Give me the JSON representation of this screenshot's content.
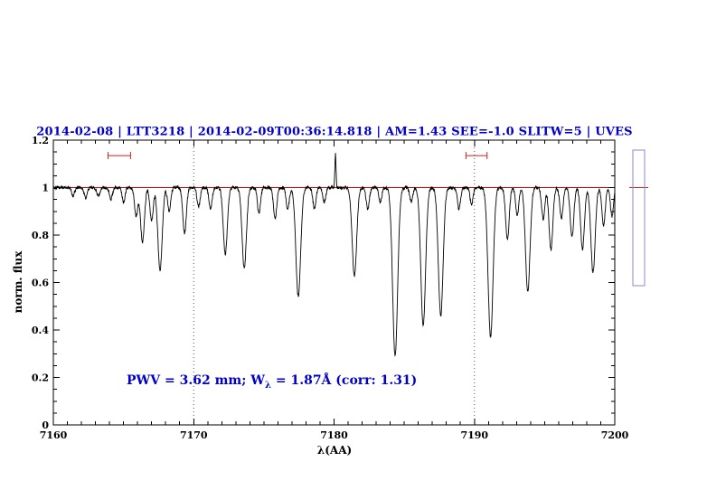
{
  "chart_data": {
    "type": "line",
    "title": "2014-02-08 | LTT3218 | 2014-02-09T00:36:14.818 | AM=1.43 SEE=-1.0 SLITW=5 | UVES",
    "title_color": "#0000cc",
    "xlabel": "λ(AA)",
    "ylabel": "norm. flux",
    "xlim": [
      7160,
      7200
    ],
    "ylim": [
      0,
      1.2
    ],
    "xticks": [
      7160,
      7170,
      7180,
      7190,
      7200
    ],
    "xtick_labels": [
      "7160",
      "7170",
      "7180",
      "7190",
      "7200"
    ],
    "yticks": [
      0,
      0.2,
      0.4,
      0.6,
      0.8,
      1,
      1.2
    ],
    "ytick_labels": [
      "0",
      "0.2",
      "0.4",
      "0.6",
      "0.8",
      "1",
      "1.2"
    ],
    "x_minor_step": 1,
    "y_minor_step": 0.05,
    "grid": "off",
    "dotted_vlines": [
      7170,
      7190
    ],
    "continuum_level": 1.0,
    "continuum_color": "#cc0000",
    "spectrum_color": "#000000",
    "spectrum_model": {
      "continuum": 1.0,
      "noise_amplitude": 0.007,
      "sample_step": 0.02,
      "line_format": [
        "center_angstrom",
        "depth",
        "fwhm_angstrom"
      ],
      "absorption_lines": [
        [
          7161.4,
          0.035,
          0.25
        ],
        [
          7162.3,
          0.045,
          0.25
        ],
        [
          7163.2,
          0.035,
          0.25
        ],
        [
          7164.1,
          0.05,
          0.25
        ],
        [
          7165.0,
          0.06,
          0.25
        ],
        [
          7165.9,
          0.12,
          0.28
        ],
        [
          7166.35,
          0.23,
          0.32
        ],
        [
          7167.0,
          0.14,
          0.28
        ],
        [
          7167.6,
          0.35,
          0.36
        ],
        [
          7168.25,
          0.1,
          0.26
        ],
        [
          7169.35,
          0.19,
          0.3
        ],
        [
          7170.35,
          0.08,
          0.26
        ],
        [
          7171.2,
          0.09,
          0.26
        ],
        [
          7172.25,
          0.28,
          0.34
        ],
        [
          7173.6,
          0.34,
          0.36
        ],
        [
          7174.65,
          0.11,
          0.26
        ],
        [
          7175.8,
          0.13,
          0.28
        ],
        [
          7176.7,
          0.09,
          0.26
        ],
        [
          7177.45,
          0.46,
          0.4
        ],
        [
          7178.6,
          0.09,
          0.26
        ],
        [
          7179.3,
          0.06,
          0.25
        ],
        [
          7181.45,
          0.37,
          0.38
        ],
        [
          7182.4,
          0.09,
          0.26
        ],
        [
          7183.3,
          0.06,
          0.25
        ],
        [
          7184.35,
          0.71,
          0.42
        ],
        [
          7185.5,
          0.06,
          0.25
        ],
        [
          7186.35,
          0.58,
          0.4
        ],
        [
          7187.6,
          0.54,
          0.4
        ],
        [
          7188.9,
          0.09,
          0.26
        ],
        [
          7189.8,
          0.07,
          0.25
        ],
        [
          7191.15,
          0.63,
          0.42
        ],
        [
          7192.35,
          0.22,
          0.3
        ],
        [
          7193.05,
          0.12,
          0.26
        ],
        [
          7193.8,
          0.44,
          0.38
        ],
        [
          7194.9,
          0.13,
          0.27
        ],
        [
          7195.45,
          0.26,
          0.32
        ],
        [
          7196.2,
          0.13,
          0.27
        ],
        [
          7196.95,
          0.21,
          0.3
        ],
        [
          7197.7,
          0.26,
          0.32
        ],
        [
          7198.45,
          0.36,
          0.36
        ],
        [
          7199.2,
          0.16,
          0.28
        ],
        [
          7199.8,
          0.12,
          0.26
        ]
      ],
      "emission_spikes": [
        [
          7180.1,
          0.14,
          0.1
        ]
      ]
    },
    "range_markers": {
      "y": 1.135,
      "color": "#cc2222",
      "spans": [
        [
          7163.9,
          7165.5
        ],
        [
          7189.4,
          7190.9
        ]
      ]
    },
    "annotation": {
      "prefix": "PWV = 3.62 mm; W",
      "subscript": "λ",
      "suffix": " = 1.87Å (corr: 1.31)",
      "color": "#0000cc"
    },
    "side_panel": {
      "stroke_color": "#8888cc",
      "line_color": "#cc2222",
      "line_level": 1.0
    }
  }
}
